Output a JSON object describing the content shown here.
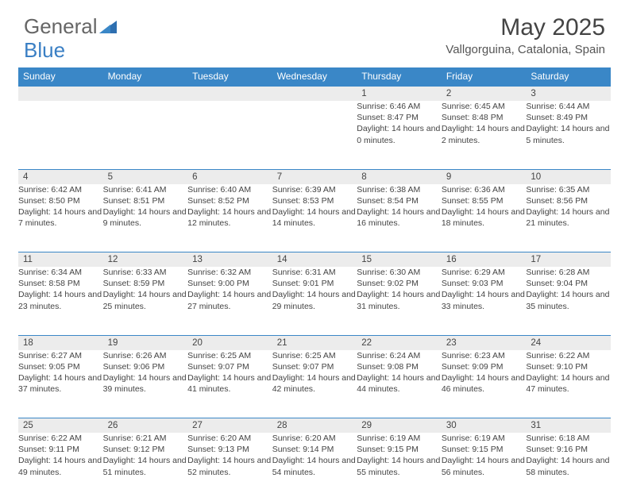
{
  "logo": {
    "general": "General",
    "blue": "Blue"
  },
  "title": "May 2025",
  "location": "Vallgorguina, Catalonia, Spain",
  "weekdays": [
    "Sunday",
    "Monday",
    "Tuesday",
    "Wednesday",
    "Thursday",
    "Friday",
    "Saturday"
  ],
  "colors": {
    "header_bg": "#3a87c7",
    "daynum_bg": "#ececec",
    "border": "#3a87c7",
    "text": "#444444",
    "background": "#ffffff"
  },
  "weeks": [
    [
      null,
      null,
      null,
      null,
      {
        "n": "1",
        "sr": "6:46 AM",
        "ss": "8:47 PM",
        "dl": "14 hours and 0 minutes."
      },
      {
        "n": "2",
        "sr": "6:45 AM",
        "ss": "8:48 PM",
        "dl": "14 hours and 2 minutes."
      },
      {
        "n": "3",
        "sr": "6:44 AM",
        "ss": "8:49 PM",
        "dl": "14 hours and 5 minutes."
      }
    ],
    [
      {
        "n": "4",
        "sr": "6:42 AM",
        "ss": "8:50 PM",
        "dl": "14 hours and 7 minutes."
      },
      {
        "n": "5",
        "sr": "6:41 AM",
        "ss": "8:51 PM",
        "dl": "14 hours and 9 minutes."
      },
      {
        "n": "6",
        "sr": "6:40 AM",
        "ss": "8:52 PM",
        "dl": "14 hours and 12 minutes."
      },
      {
        "n": "7",
        "sr": "6:39 AM",
        "ss": "8:53 PM",
        "dl": "14 hours and 14 minutes."
      },
      {
        "n": "8",
        "sr": "6:38 AM",
        "ss": "8:54 PM",
        "dl": "14 hours and 16 minutes."
      },
      {
        "n": "9",
        "sr": "6:36 AM",
        "ss": "8:55 PM",
        "dl": "14 hours and 18 minutes."
      },
      {
        "n": "10",
        "sr": "6:35 AM",
        "ss": "8:56 PM",
        "dl": "14 hours and 21 minutes."
      }
    ],
    [
      {
        "n": "11",
        "sr": "6:34 AM",
        "ss": "8:58 PM",
        "dl": "14 hours and 23 minutes."
      },
      {
        "n": "12",
        "sr": "6:33 AM",
        "ss": "8:59 PM",
        "dl": "14 hours and 25 minutes."
      },
      {
        "n": "13",
        "sr": "6:32 AM",
        "ss": "9:00 PM",
        "dl": "14 hours and 27 minutes."
      },
      {
        "n": "14",
        "sr": "6:31 AM",
        "ss": "9:01 PM",
        "dl": "14 hours and 29 minutes."
      },
      {
        "n": "15",
        "sr": "6:30 AM",
        "ss": "9:02 PM",
        "dl": "14 hours and 31 minutes."
      },
      {
        "n": "16",
        "sr": "6:29 AM",
        "ss": "9:03 PM",
        "dl": "14 hours and 33 minutes."
      },
      {
        "n": "17",
        "sr": "6:28 AM",
        "ss": "9:04 PM",
        "dl": "14 hours and 35 minutes."
      }
    ],
    [
      {
        "n": "18",
        "sr": "6:27 AM",
        "ss": "9:05 PM",
        "dl": "14 hours and 37 minutes."
      },
      {
        "n": "19",
        "sr": "6:26 AM",
        "ss": "9:06 PM",
        "dl": "14 hours and 39 minutes."
      },
      {
        "n": "20",
        "sr": "6:25 AM",
        "ss": "9:07 PM",
        "dl": "14 hours and 41 minutes."
      },
      {
        "n": "21",
        "sr": "6:25 AM",
        "ss": "9:07 PM",
        "dl": "14 hours and 42 minutes."
      },
      {
        "n": "22",
        "sr": "6:24 AM",
        "ss": "9:08 PM",
        "dl": "14 hours and 44 minutes."
      },
      {
        "n": "23",
        "sr": "6:23 AM",
        "ss": "9:09 PM",
        "dl": "14 hours and 46 minutes."
      },
      {
        "n": "24",
        "sr": "6:22 AM",
        "ss": "9:10 PM",
        "dl": "14 hours and 47 minutes."
      }
    ],
    [
      {
        "n": "25",
        "sr": "6:22 AM",
        "ss": "9:11 PM",
        "dl": "14 hours and 49 minutes."
      },
      {
        "n": "26",
        "sr": "6:21 AM",
        "ss": "9:12 PM",
        "dl": "14 hours and 51 minutes."
      },
      {
        "n": "27",
        "sr": "6:20 AM",
        "ss": "9:13 PM",
        "dl": "14 hours and 52 minutes."
      },
      {
        "n": "28",
        "sr": "6:20 AM",
        "ss": "9:14 PM",
        "dl": "14 hours and 54 minutes."
      },
      {
        "n": "29",
        "sr": "6:19 AM",
        "ss": "9:15 PM",
        "dl": "14 hours and 55 minutes."
      },
      {
        "n": "30",
        "sr": "6:19 AM",
        "ss": "9:15 PM",
        "dl": "14 hours and 56 minutes."
      },
      {
        "n": "31",
        "sr": "6:18 AM",
        "ss": "9:16 PM",
        "dl": "14 hours and 58 minutes."
      }
    ]
  ],
  "labels": {
    "sunrise": "Sunrise: ",
    "sunset": "Sunset: ",
    "daylight": "Daylight: "
  }
}
